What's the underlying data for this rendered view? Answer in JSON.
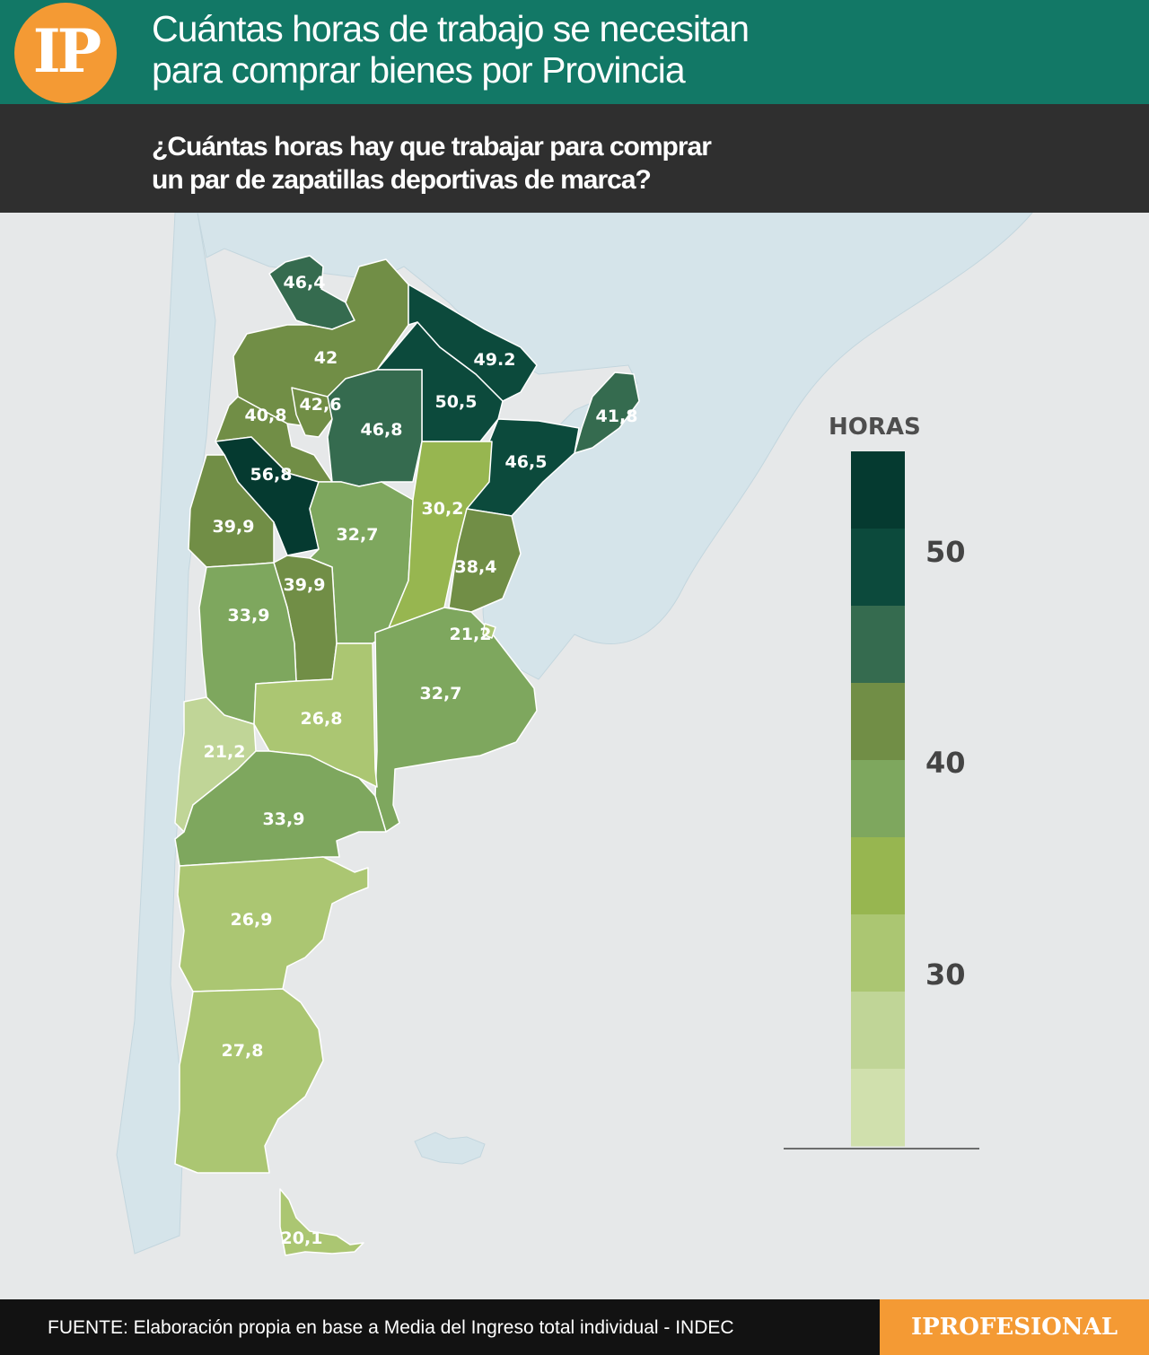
{
  "header": {
    "logo": "IP",
    "title_lines": [
      "Cuántas horas de trabajo se necesitan",
      "para comprar bienes por Provincia"
    ]
  },
  "subheader": {
    "subtitle_lines": [
      "¿Cuántas horas hay que trabajar para comprar",
      "un par de zapatillas deportivas de marca?"
    ]
  },
  "legend": {
    "title": "HORAS",
    "ticks": [
      "50",
      "40",
      "30"
    ],
    "colors": [
      "#053a30",
      "#0c4a3c",
      "#356b4f",
      "#718e46",
      "#7ea75e",
      "#97b650",
      "#abc672",
      "#c0d597",
      "#d0e0ad"
    ]
  },
  "colors": {
    "header_green": "#127866",
    "subheader_dark": "#2f2f2f",
    "logo_orange": "#f49a34",
    "neighbor_countries": "#d5e4ea",
    "ocean": "#e6e8e9"
  },
  "map_data": {
    "unit": "horas",
    "provinces": [
      {
        "id": "jujuy",
        "value": "46,4"
      },
      {
        "id": "salta",
        "value": "42"
      },
      {
        "id": "formosa",
        "value": "49.2"
      },
      {
        "id": "catamarca",
        "value": "40,8"
      },
      {
        "id": "tucuman",
        "value": "42,6"
      },
      {
        "id": "chaco",
        "value": "50,5"
      },
      {
        "id": "santiago-del-estero",
        "value": "46,8"
      },
      {
        "id": "misiones",
        "value": "41,8"
      },
      {
        "id": "corrientes",
        "value": "46,5"
      },
      {
        "id": "la-rioja",
        "value": "56,8"
      },
      {
        "id": "san-juan",
        "value": "39,9"
      },
      {
        "id": "cordoba",
        "value": "32,7"
      },
      {
        "id": "santa-fe",
        "value": "30,2"
      },
      {
        "id": "entre-rios",
        "value": "38,4"
      },
      {
        "id": "san-luis",
        "value": "39,9"
      },
      {
        "id": "mendoza",
        "value": "33,9"
      },
      {
        "id": "caba",
        "value": "21,2"
      },
      {
        "id": "buenos-aires",
        "value": "32,7"
      },
      {
        "id": "la-pampa",
        "value": "26,8"
      },
      {
        "id": "neuquen",
        "value": "21,2"
      },
      {
        "id": "rio-negro",
        "value": "33,9"
      },
      {
        "id": "chubut",
        "value": "26,9"
      },
      {
        "id": "santa-cruz",
        "value": "27,8"
      },
      {
        "id": "tierra-del-fuego",
        "value": "20,1"
      }
    ]
  },
  "footer": {
    "source": "FUENTE: Elaboración propia en base a Media del Ingreso total individual - INDEC",
    "brand": "IPROFESIONAL"
  }
}
